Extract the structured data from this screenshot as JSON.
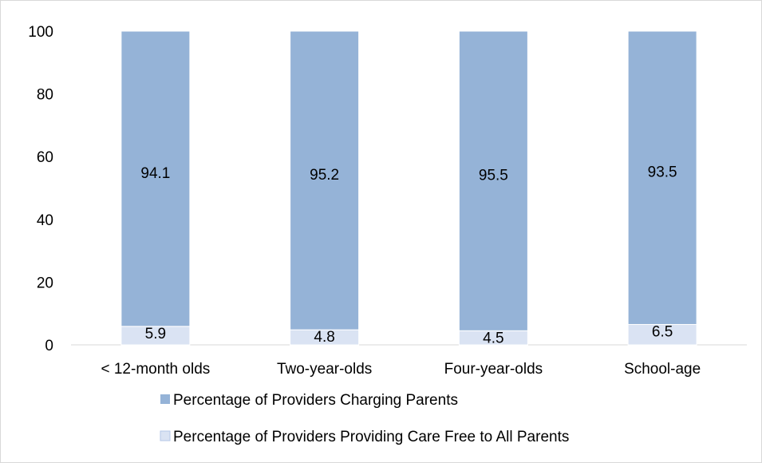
{
  "chart_data": {
    "type": "bar",
    "stacked": true,
    "title": "",
    "xlabel": "",
    "ylabel": "",
    "categories": [
      "< 12-month olds",
      "Two-year-olds",
      "Four-year-olds",
      "School-age"
    ],
    "series": [
      {
        "name": "Percentage of Providers Providing Care Free to All Parents",
        "values": [
          5.9,
          4.8,
          4.5,
          6.5
        ],
        "color": "#dae3f3",
        "labels": [
          "5.9",
          "4.8",
          "4.5",
          "6.5"
        ]
      },
      {
        "name": "Percentage of Providers Charging Parents",
        "values": [
          94.1,
          95.2,
          95.5,
          93.5
        ],
        "color": "#95b3d7",
        "labels": [
          "94.1",
          "95.2",
          "95.5",
          "93.5"
        ]
      }
    ],
    "ylim": [
      0,
      100
    ],
    "yticks": [
      0,
      20,
      40,
      60,
      80,
      100
    ],
    "grid": false,
    "legend": {
      "position": "bottom",
      "order": [
        1,
        0
      ]
    }
  }
}
